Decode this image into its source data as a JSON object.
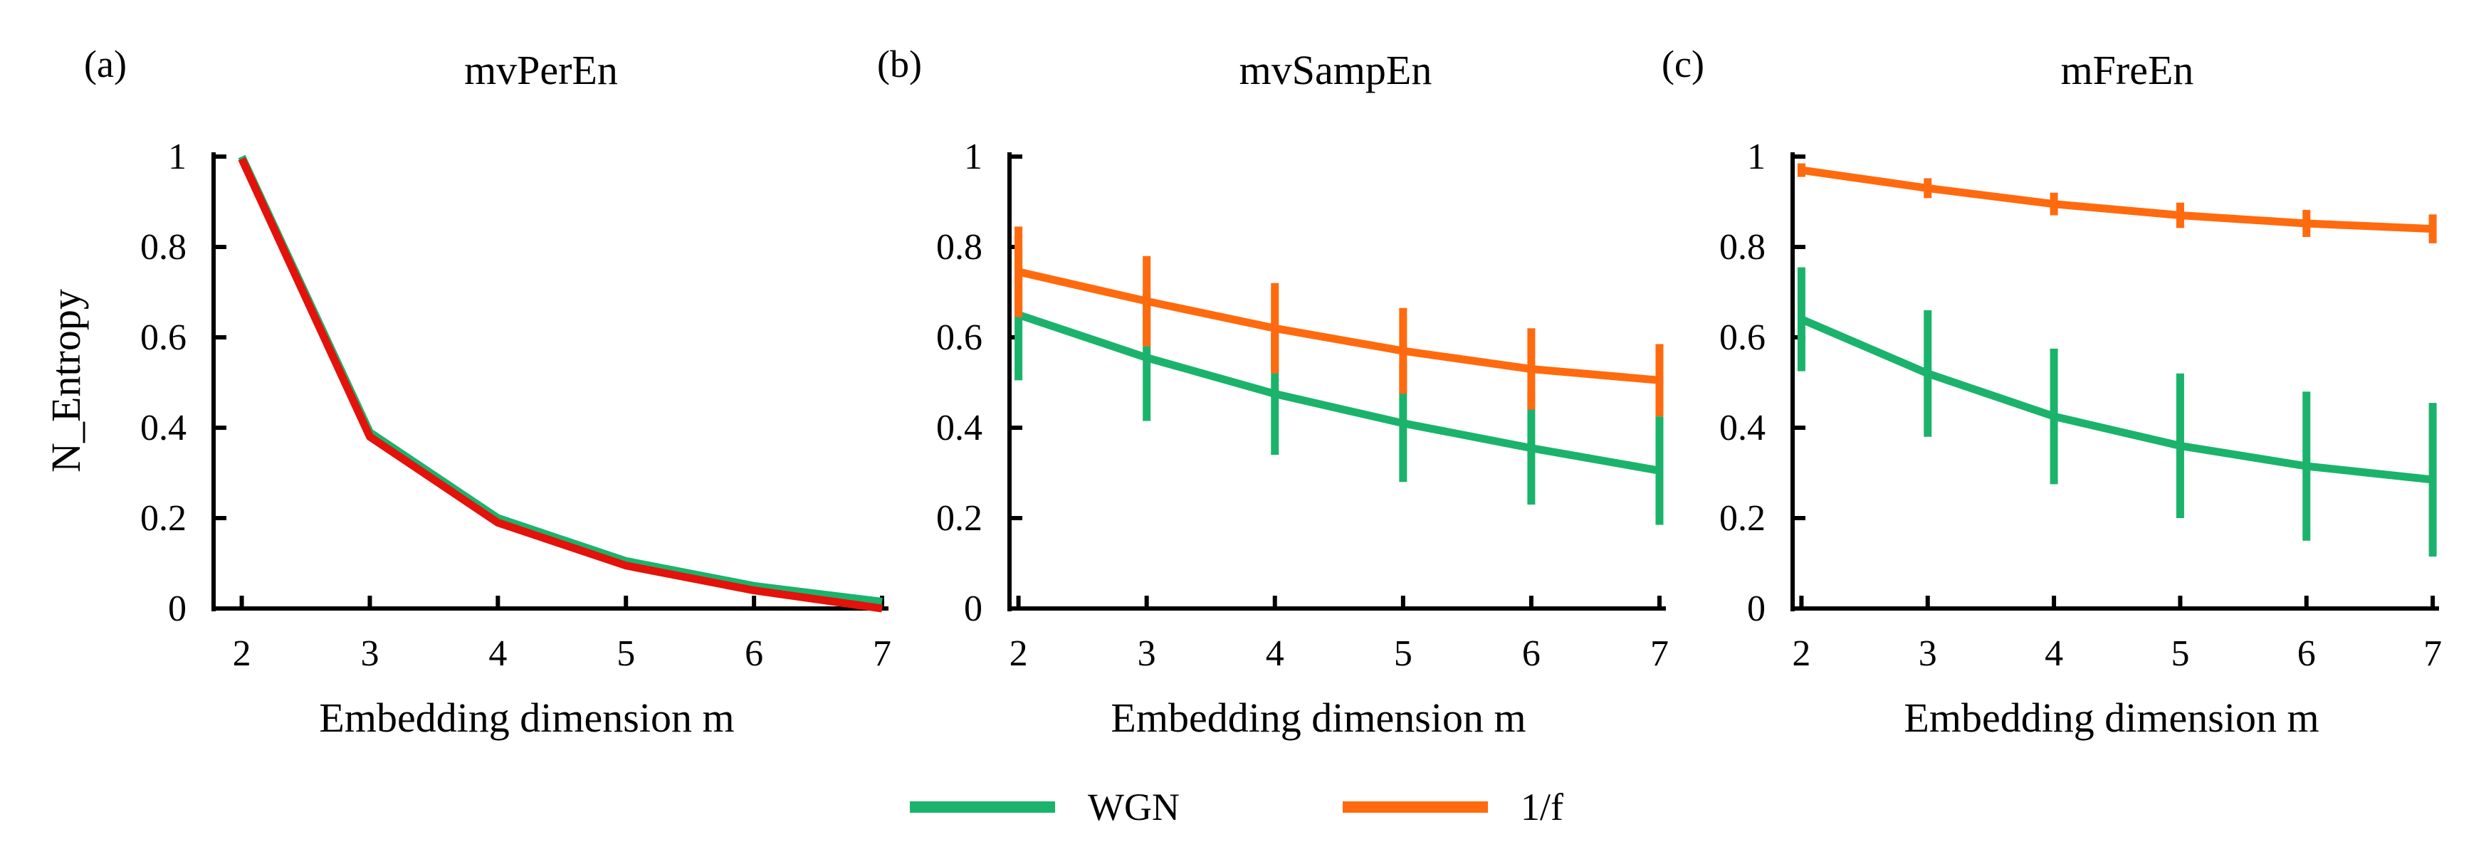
{
  "colors": {
    "wgn": "#1bb36b",
    "one_over_f": "#ff6a0f",
    "mvperen_overlay": "#e3120b",
    "axis": "#000000"
  },
  "legend": {
    "wgn_label": "WGN",
    "one_over_f_label": "1/f"
  },
  "chart_data": [
    {
      "type": "line",
      "panel_label": "(a)",
      "title": "mvPerEn",
      "xlabel": "Embedding dimension m",
      "ylabel": "N_Entropy",
      "x": [
        2,
        3,
        4,
        5,
        6,
        7
      ],
      "xlim": [
        1.78,
        7.05
      ],
      "ylim": [
        0,
        1
      ],
      "yticks": [
        0,
        0.2,
        0.4,
        0.6,
        0.8,
        1
      ],
      "ytick_labels": [
        "0",
        "0.2",
        "0.4",
        "0.6",
        "0.8",
        "1"
      ],
      "xtick_labels": [
        "2",
        "3",
        "4",
        "5",
        "6",
        "7"
      ],
      "series": [
        {
          "key": "wgn",
          "values": [
            1.0,
            0.39,
            0.2,
            0.105,
            0.05,
            0.015
          ],
          "error": null
        },
        {
          "key": "one_over_f",
          "color_key": "mvperen_overlay",
          "values": [
            0.995,
            0.38,
            0.19,
            0.095,
            0.04,
            0.0
          ],
          "error": null
        }
      ]
    },
    {
      "type": "line",
      "panel_label": "(b)",
      "title": "mvSampEn",
      "xlabel": "Embedding dimension m",
      "ylabel": "",
      "x": [
        2,
        3,
        4,
        5,
        6,
        7
      ],
      "xlim": [
        1.93,
        7.05
      ],
      "ylim": [
        0,
        1
      ],
      "yticks": [
        0,
        0.2,
        0.4,
        0.6,
        0.8,
        1
      ],
      "ytick_labels": [
        "0",
        "0.2",
        "0.4",
        "0.6",
        "0.8",
        "1"
      ],
      "xtick_labels": [
        "2",
        "3",
        "4",
        "5",
        "6",
        "7"
      ],
      "series": [
        {
          "key": "wgn",
          "values": [
            0.65,
            0.555,
            0.475,
            0.41,
            0.355,
            0.305
          ],
          "error": [
            0.145,
            0.14,
            0.135,
            0.13,
            0.125,
            0.12
          ]
        },
        {
          "key": "one_over_f",
          "values": [
            0.745,
            0.68,
            0.62,
            0.57,
            0.53,
            0.505
          ],
          "error": [
            0.1,
            0.1,
            0.1,
            0.095,
            0.09,
            0.08
          ]
        }
      ]
    },
    {
      "type": "line",
      "panel_label": "(c)",
      "title": "mFreEn",
      "xlabel": "Embedding dimension m",
      "ylabel": "",
      "x": [
        2,
        3,
        4,
        5,
        6,
        7
      ],
      "xlim": [
        1.93,
        7.05
      ],
      "ylim": [
        0,
        1
      ],
      "yticks": [
        0,
        0.2,
        0.4,
        0.6,
        0.8,
        1
      ],
      "ytick_labels": [
        "0",
        "0.2",
        "0.4",
        "0.6",
        "0.8",
        "1"
      ],
      "xtick_labels": [
        "2",
        "3",
        "4",
        "5",
        "6",
        "7"
      ],
      "series": [
        {
          "key": "wgn",
          "values": [
            0.64,
            0.52,
            0.425,
            0.36,
            0.315,
            0.285
          ],
          "error": [
            0.115,
            0.14,
            0.15,
            0.16,
            0.165,
            0.17
          ]
        },
        {
          "key": "one_over_f",
          "values": [
            0.97,
            0.93,
            0.895,
            0.87,
            0.852,
            0.84
          ],
          "error": [
            0.015,
            0.022,
            0.025,
            0.028,
            0.03,
            0.032
          ]
        }
      ]
    }
  ]
}
